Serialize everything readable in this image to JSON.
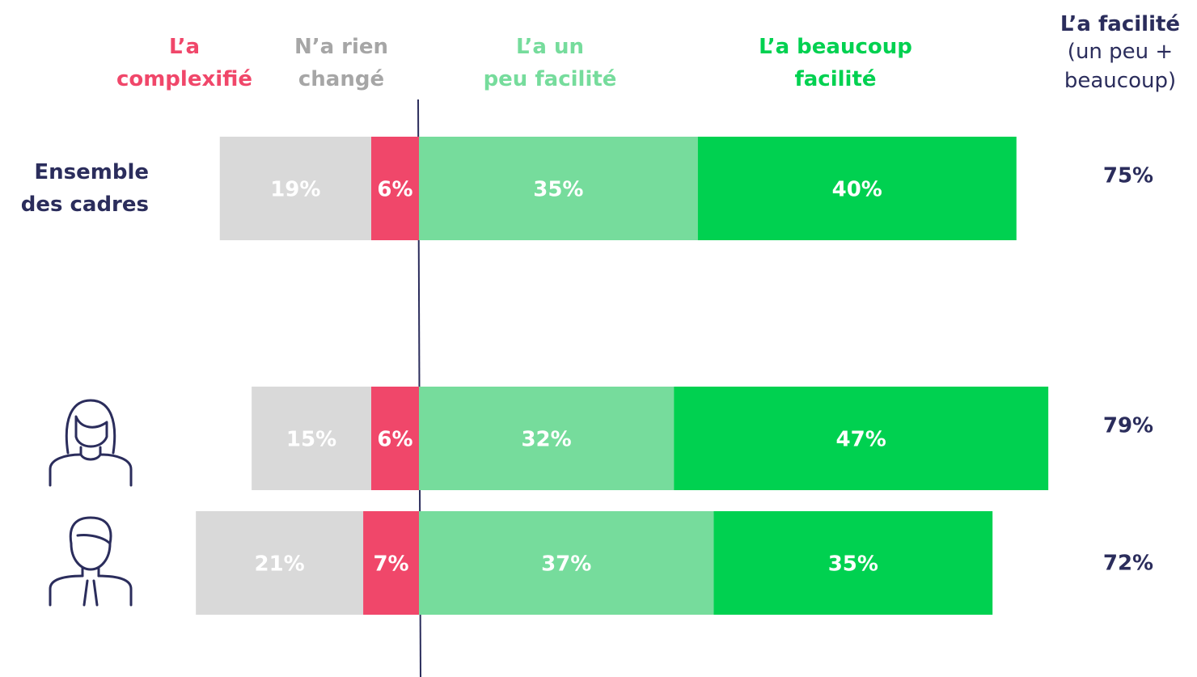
{
  "chart_data": {
    "type": "diverging-bar",
    "categories": [
      "Ensemble\ndes cadres",
      null,
      null
    ],
    "series": [
      {
        "name": "L’a\ncomplexifié",
        "color": "#f0476a",
        "side": "left",
        "values": [
          6,
          6,
          7
        ],
        "value_labels": [
          "6%",
          "6%",
          "7%"
        ]
      },
      {
        "name": "N’a rien\nchangé",
        "color": "#d9d9d9",
        "legend_color": "#a6a6a6",
        "side": "left",
        "values": [
          19,
          15,
          21
        ],
        "value_labels": [
          "19%",
          "15%",
          "21%"
        ]
      },
      {
        "name": "L’a un\npeu facilité",
        "color": "#76dc9c",
        "side": "right",
        "values": [
          35,
          32,
          37
        ],
        "value_labels": [
          "35%",
          "32%",
          "37%"
        ]
      },
      {
        "name": "L’a beaucoup\nfacilité",
        "color": "#00d150",
        "side": "right",
        "values": [
          40,
          47,
          35
        ],
        "value_labels": [
          "40%",
          "47%",
          "35%"
        ]
      }
    ],
    "totals": {
      "title": "L’a facilité",
      "subtitle": "(un peu +\nbeaucoup)",
      "values": [
        75,
        79,
        72
      ],
      "value_labels": [
        "75%",
        "79%",
        "72%"
      ]
    }
  }
}
